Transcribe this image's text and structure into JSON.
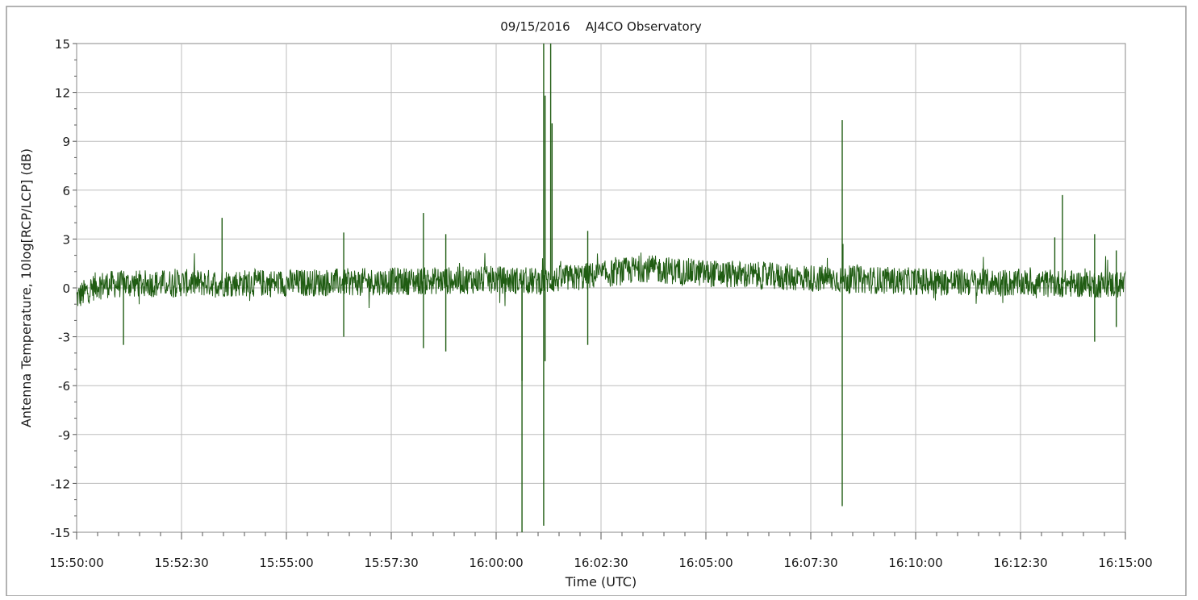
{
  "chart_data": {
    "type": "line",
    "title": "09/15/2016    AJ4CO Observatory",
    "xlabel": "Time (UTC)",
    "ylabel": "Antenna Temperature, 10log[RCP/LCP] (dB)",
    "x_range": [
      "15:50:00",
      "16:15:00"
    ],
    "x_tick_labels": [
      "15:50:00",
      "15:52:30",
      "15:55:00",
      "15:57:30",
      "16:00:00",
      "16:02:30",
      "16:05:00",
      "16:07:30",
      "16:10:00",
      "16:12:30",
      "16:15:00"
    ],
    "y_tick_labels": [
      "15",
      "12",
      "9",
      "6",
      "3",
      "0",
      "-3",
      "-6",
      "-9",
      "-12",
      "-15"
    ],
    "ylim": [
      -15,
      15
    ],
    "grid": true,
    "series": [
      {
        "color": "#1f5c12",
        "baseline_points": [
          {
            "t": "15:50:00",
            "y": -0.6
          },
          {
            "t": "15:50:30",
            "y": 0.2
          },
          {
            "t": "15:52:30",
            "y": 0.3
          },
          {
            "t": "15:55:00",
            "y": 0.3
          },
          {
            "t": "15:57:30",
            "y": 0.4
          },
          {
            "t": "16:00:00",
            "y": 0.5
          },
          {
            "t": "16:01:00",
            "y": 0.4
          },
          {
            "t": "16:02:30",
            "y": 0.8
          },
          {
            "t": "16:03:30",
            "y": 1.2
          },
          {
            "t": "16:05:00",
            "y": 0.9
          },
          {
            "t": "16:07:30",
            "y": 0.6
          },
          {
            "t": "16:10:00",
            "y": 0.4
          },
          {
            "t": "16:12:30",
            "y": 0.3
          },
          {
            "t": "16:15:00",
            "y": 0.2
          }
        ],
        "spikes": [
          {
            "t": "15:51:07",
            "y": -3.5
          },
          {
            "t": "15:53:28",
            "y": 4.3
          },
          {
            "t": "15:56:22",
            "y": 3.4
          },
          {
            "t": "15:56:22",
            "y": -3.0
          },
          {
            "t": "15:58:16",
            "y": 4.6
          },
          {
            "t": "15:58:16",
            "y": -3.7
          },
          {
            "t": "15:58:48",
            "y": 3.3
          },
          {
            "t": "15:58:48",
            "y": -3.9
          },
          {
            "t": "16:00:37",
            "y": -15.0
          },
          {
            "t": "16:00:37",
            "y": -5.7
          },
          {
            "t": "16:01:08",
            "y": 15.0
          },
          {
            "t": "16:01:08",
            "y": -14.6
          },
          {
            "t": "16:01:10",
            "y": 11.8
          },
          {
            "t": "16:01:10",
            "y": -4.5
          },
          {
            "t": "16:01:18",
            "y": 15.0
          },
          {
            "t": "16:01:20",
            "y": 10.1
          },
          {
            "t": "16:02:11",
            "y": 3.5
          },
          {
            "t": "16:02:11",
            "y": -3.5
          },
          {
            "t": "16:08:15",
            "y": 10.3
          },
          {
            "t": "16:08:15",
            "y": -13.4
          },
          {
            "t": "16:08:16",
            "y": 2.7
          },
          {
            "t": "16:13:30",
            "y": 5.7
          },
          {
            "t": "16:13:19",
            "y": 3.1
          },
          {
            "t": "16:14:16",
            "y": 3.3
          },
          {
            "t": "16:14:16",
            "y": -3.3
          },
          {
            "t": "16:14:47",
            "y": 2.3
          },
          {
            "t": "16:14:47",
            "y": -2.4
          }
        ]
      }
    ]
  }
}
